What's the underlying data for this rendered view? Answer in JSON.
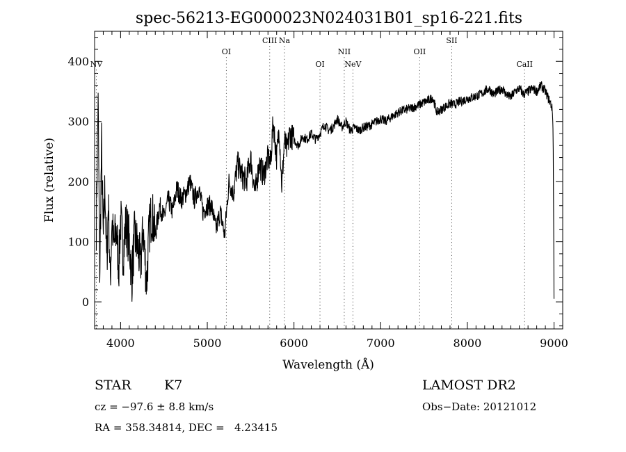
{
  "chart_data": {
    "type": "line",
    "title": "spec-56213-EG000023N024031B01_sp16-221.fits",
    "xlabel": "Wavelength (Å)",
    "ylabel": "Flux (relative)",
    "xlim": [
      3700,
      9100
    ],
    "ylim": [
      -45,
      450
    ],
    "xticks": [
      4000,
      5000,
      6000,
      7000,
      8000,
      9000
    ],
    "xtick_labels": [
      "4000",
      "5000",
      "6000",
      "7000",
      "8000",
      "9000"
    ],
    "yticks": [
      0,
      100,
      200,
      300,
      400
    ],
    "ytick_labels": [
      "0",
      "100",
      "200",
      "300",
      "400"
    ],
    "grid": false,
    "spectrum": {
      "x": [
        3720,
        3740,
        3760,
        3780,
        3800,
        3820,
        3840,
        3860,
        3880,
        3900,
        3920,
        3950,
        3980,
        4000,
        4030,
        4060,
        4100,
        4130,
        4160,
        4200,
        4230,
        4260,
        4300,
        4330,
        4360,
        4400,
        4450,
        4500,
        4550,
        4600,
        4650,
        4700,
        4750,
        4800,
        4850,
        4900,
        4950,
        5000,
        5050,
        5100,
        5150,
        5200,
        5250,
        5300,
        5350,
        5400,
        5450,
        5500,
        5550,
        5600,
        5650,
        5700,
        5730,
        5760,
        5800,
        5830,
        5860,
        5890,
        5920,
        5950,
        6000,
        6050,
        6100,
        6150,
        6200,
        6250,
        6300,
        6350,
        6400,
        6450,
        6500,
        6550,
        6600,
        6650,
        6700,
        6750,
        6800,
        6850,
        6900,
        6950,
        7000,
        7050,
        7100,
        7150,
        7200,
        7250,
        7300,
        7350,
        7400,
        7450,
        7500,
        7550,
        7600,
        7650,
        7700,
        7750,
        7800,
        7850,
        7900,
        7950,
        8000,
        8050,
        8100,
        8150,
        8200,
        8250,
        8300,
        8350,
        8400,
        8450,
        8500,
        8550,
        8600,
        8650,
        8700,
        8750,
        8800,
        8850,
        8900,
        8930,
        8960,
        8980,
        8990,
        9000
      ],
      "y": [
        130,
        340,
        40,
        260,
        100,
        200,
        60,
        170,
        30,
        140,
        90,
        120,
        60,
        140,
        80,
        130,
        100,
        40,
        110,
        90,
        60,
        120,
        30,
        120,
        150,
        110,
        160,
        140,
        170,
        150,
        190,
        170,
        180,
        200,
        170,
        190,
        150,
        160,
        160,
        120,
        150,
        110,
        200,
        180,
        230,
        210,
        200,
        240,
        180,
        230,
        210,
        240,
        230,
        300,
        240,
        290,
        190,
        270,
        250,
        280,
        270,
        260,
        275,
        270,
        280,
        270,
        280,
        295,
        285,
        290,
        305,
        290,
        300,
        285,
        290,
        285,
        290,
        292,
        295,
        300,
        305,
        300,
        305,
        310,
        315,
        318,
        320,
        322,
        325,
        328,
        332,
        335,
        340,
        315,
        320,
        325,
        330,
        328,
        332,
        335,
        338,
        340,
        342,
        345,
        350,
        355,
        345,
        350,
        355,
        345,
        340,
        350,
        355,
        345,
        350,
        355,
        350,
        360,
        350,
        340,
        330,
        320,
        280,
        5
      ]
    },
    "lines": [
      {
        "name": "NV",
        "x": 3720,
        "tier": "low"
      },
      {
        "name": "OI",
        "x": 5220,
        "tier": "mid"
      },
      {
        "name": "CIII",
        "x": 5720,
        "tier": "high"
      },
      {
        "name": "Na",
        "x": 5890,
        "tier": "high"
      },
      {
        "name": "OI",
        "x": 6300,
        "tier": "low"
      },
      {
        "name": "NII",
        "x": 6580,
        "tier": "mid"
      },
      {
        "name": "NeV",
        "x": 6680,
        "tier": "low"
      },
      {
        "name": "OII",
        "x": 7450,
        "tier": "mid"
      },
      {
        "name": "SII",
        "x": 7820,
        "tier": "high"
      },
      {
        "name": "CaII",
        "x": 8660,
        "tier": "low"
      }
    ]
  },
  "info": {
    "class": "STAR",
    "subclass": "K7",
    "survey": "LAMOST DR2",
    "redshift": "cz = −97.6 ± 8.8 km/s",
    "obs_date": "Obs−Date: 20121012",
    "coords": "RA = 358.34814, DEC =   4.23415"
  }
}
